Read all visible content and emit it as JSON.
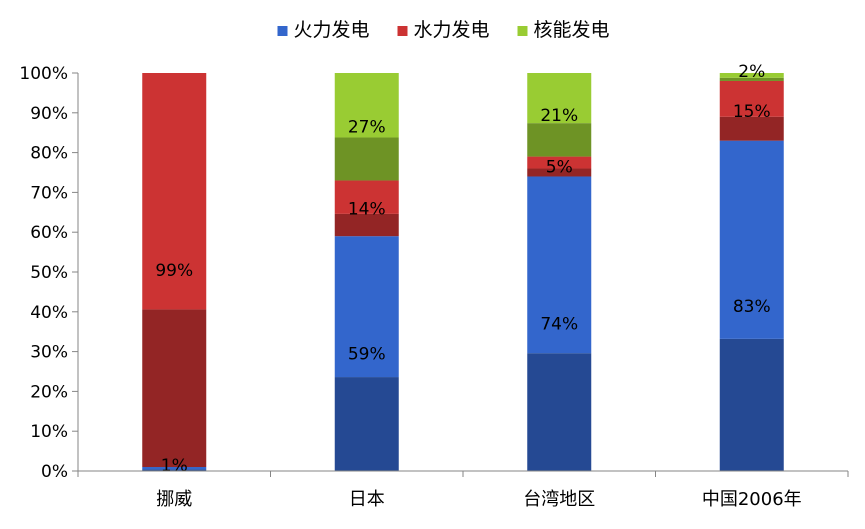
{
  "chart_data": {
    "type": "bar",
    "stacked": true,
    "percent_stacked": true,
    "categories": [
      "挪威",
      "日本",
      "台湾地区",
      "中国2006年"
    ],
    "series": [
      {
        "name": "火力发电",
        "values": [
          1,
          59,
          74,
          83
        ],
        "labels": [
          "1%",
          "59%",
          "74%",
          "83%"
        ]
      },
      {
        "name": "水力发电",
        "values": [
          99,
          14,
          5,
          15
        ],
        "labels": [
          "99%",
          "14%",
          "5%",
          "15%"
        ]
      },
      {
        "name": "核能发电",
        "values": [
          0,
          27,
          21,
          2
        ],
        "labels": [
          "",
          "27%",
          "21%",
          "2%"
        ]
      }
    ],
    "ylim": [
      0,
      100
    ],
    "yticks": [
      "0%",
      "10%",
      "20%",
      "30%",
      "40%",
      "50%",
      "60%",
      "70%",
      "80%",
      "90%",
      "100%"
    ],
    "legend_position": "top",
    "grid": false,
    "colors": {
      "火力发电": "#3366cc",
      "水力发电": "#cc3333",
      "核能发电": "#99cc33"
    }
  }
}
